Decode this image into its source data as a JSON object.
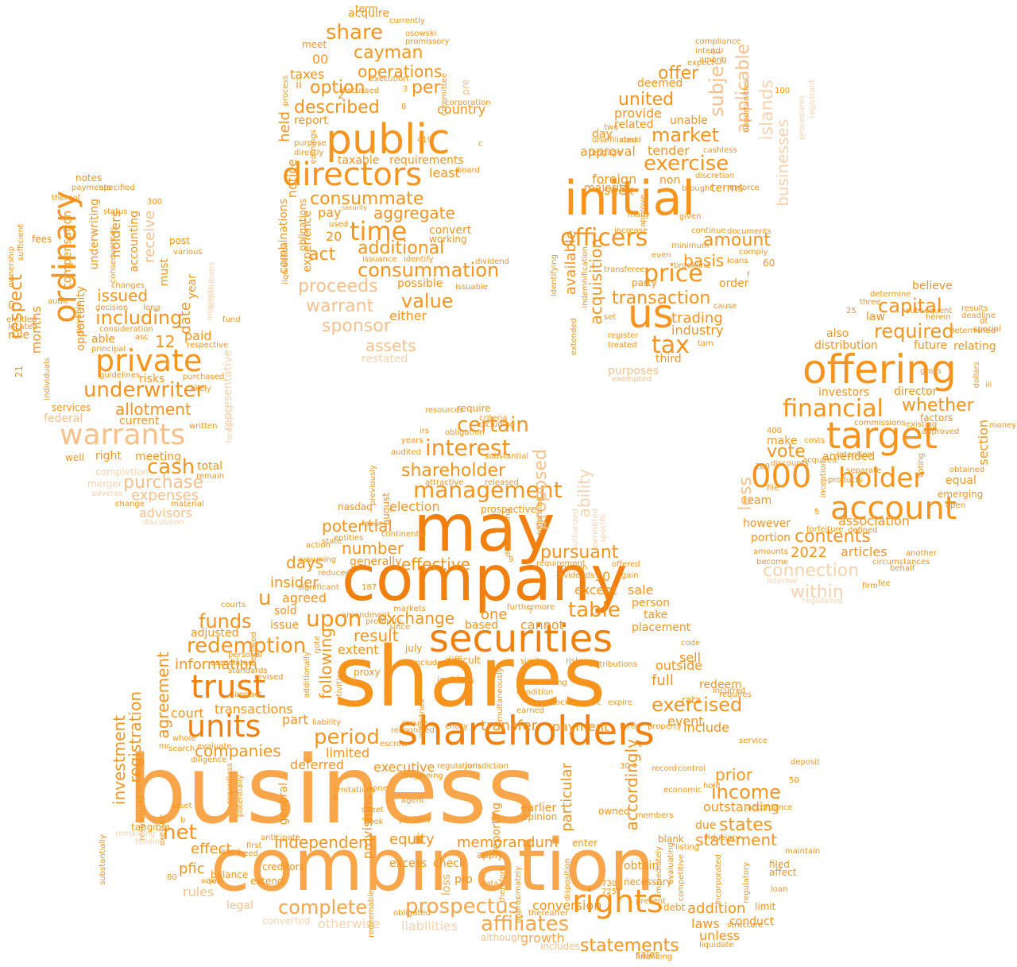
{
  "words": [
    "business",
    "shares",
    "combination",
    "company",
    "may",
    "securities",
    "shareholders",
    "initial",
    "public",
    "offering",
    "target",
    "directors",
    "units",
    "trust",
    "account",
    "rights",
    "warrants",
    "ordinary",
    "private",
    "000",
    "holder",
    "time",
    "affiliates",
    "prospectus",
    "statements",
    "consummation",
    "officers",
    "exercise",
    "us",
    "tax",
    "price",
    "underwriter",
    "redemption",
    "income",
    "cash",
    "period",
    "share",
    "financial",
    "capital",
    "exercised",
    "independent",
    "complete",
    "interest",
    "certain",
    "management",
    "upon",
    "table",
    "net",
    "value",
    "funds",
    "cayman",
    "operations",
    "described",
    "option",
    "consummate",
    "aggregate",
    "additional",
    "act",
    "proceeds",
    "warrant",
    "sponsor",
    "assets",
    "held",
    "per",
    "subject",
    "applicable",
    "islands",
    "market",
    "united",
    "offer",
    "transaction",
    "amount",
    "basis",
    "acquisition",
    "available",
    "trading",
    "industry",
    "third",
    "tender",
    "approval",
    "required",
    "whether",
    "vote",
    "contents",
    "connection",
    "within",
    "association",
    "2022",
    "articles",
    "amended",
    "months",
    "respect",
    "including",
    "issued",
    "allotment",
    "purchase",
    "expenses",
    "advisors",
    "receive",
    "date",
    "12",
    "paid",
    "pursuant",
    "proposed",
    "ability",
    "shareholder",
    "number",
    "potential",
    "election",
    "registration",
    "investment",
    "agreement",
    "information",
    "following",
    "companies",
    "states",
    "statement",
    "outstanding",
    "prior",
    "accordingly",
    "particular",
    "memorandum",
    "equity",
    "effect",
    "pfic",
    "rules",
    "legal",
    "conversion",
    "growth",
    "addition",
    "laws",
    "unless",
    "full",
    "outside",
    "sell",
    "redeem",
    "event",
    "include",
    "transfer",
    "payment",
    "limited",
    "executive",
    "provisions",
    "general",
    "deferred",
    "transactions",
    "court",
    "adjusted",
    "part",
    "agreed",
    "insider",
    "days",
    "effective",
    "generally",
    "exchange",
    "result",
    "extent",
    "one",
    "cannot",
    "based",
    "except",
    "sale",
    "person",
    "take",
    "placement",
    "10",
    "u",
    "notes",
    "fees",
    "compensation",
    "underwriting",
    "holders",
    "accounting",
    "opportunity",
    "federal",
    "services",
    "well",
    "right",
    "current",
    "risks",
    "meeting",
    "total",
    "completion",
    "merger",
    "representative",
    "year",
    "must",
    "post",
    "0",
    "rule",
    "21",
    "able",
    "team",
    "however",
    "portion",
    "make",
    "less",
    "section",
    "director",
    "investors",
    "also",
    "law",
    "distribution",
    "future",
    "relating",
    "believe",
    "obtain",
    "necessary",
    "extend",
    "balance",
    "qef",
    "actions",
    "creditors",
    "80",
    "need",
    "listed",
    "first",
    "anticipate",
    "check",
    "excess",
    "pro",
    "loss",
    "apply",
    "data",
    "reporting",
    "earlier",
    "opinion",
    "enter",
    "owned",
    "members",
    "debt",
    "present",
    "sales",
    "includes",
    "although",
    "thereafter",
    "obligated",
    "liabilities",
    "otherwise",
    "converted",
    "restated",
    "either",
    "possible",
    "issuable",
    "issuance",
    "working",
    "convert",
    "dividend",
    "identify",
    "requirements",
    "least",
    "pay",
    "20",
    "used",
    "taxable",
    "notice",
    "obligations",
    "experience",
    "combinations",
    "liquidation",
    "report",
    "purpose",
    "directly",
    "earnings",
    "security",
    "board",
    "country",
    "corporation",
    "pre",
    "committee",
    "execution",
    "discussed",
    "promissory",
    "osowski",
    "currently",
    "term",
    "acquire",
    "taxes",
    "meet",
    "ii",
    "process",
    "00",
    "2",
    "3",
    "8",
    "419",
    "c",
    "deemed",
    "provide",
    "related",
    "unable",
    "day",
    "foreign",
    "seek",
    "majority",
    "non",
    "terms",
    "two",
    "cloud",
    "engage",
    "unaffiliated",
    "cashless",
    "discretion",
    "enforce",
    "brought",
    "approve",
    "many",
    "increase",
    "continue",
    "given",
    "minimum",
    "documents",
    "comply",
    "brookline",
    "cause",
    "party",
    "order",
    "purposes",
    "exempted",
    "treated",
    "register",
    "set",
    "extended",
    "indemnification",
    "identifying",
    "transferees",
    "even",
    "tam",
    "loans",
    "f",
    "60",
    "100",
    "compliance",
    "intend",
    "among",
    "expect",
    "opportunities",
    "procedures",
    "businesses",
    "registrant",
    "special",
    "dt",
    "results",
    "deadline",
    "determined",
    "subsequent",
    "herein",
    "determine",
    "three",
    "25",
    "iii",
    "dollars",
    "gross",
    "money",
    "open",
    "emerging",
    "equal",
    "obtained",
    "factors",
    "existing",
    "commissions",
    "approved",
    "voting",
    "acquired",
    "costs",
    "file",
    "400",
    "180",
    "discounts",
    "5",
    "inception",
    "products",
    "separate",
    "intention",
    "forfeiture",
    "defined",
    "amounts",
    "become",
    "internal",
    "registered",
    "fee",
    "firm",
    "circumstances",
    "behalf",
    "another",
    "fiduciary",
    "hold",
    "record",
    "control",
    "deposit",
    "50",
    "accordance",
    "maintain",
    "filed",
    "affect",
    "loan",
    "limit",
    "conduct",
    "structure",
    "liquidate",
    "regulatory",
    "incorporated",
    "immediately",
    "evaluating",
    "competitive",
    "economic",
    "service",
    "requires",
    "incurred",
    "rata",
    "due",
    "blank",
    "listing",
    "financing",
    "730",
    "725",
    "redeemable",
    "disposition",
    "approximately",
    "therefore",
    "similar",
    "risk",
    "distributions",
    "expire",
    "consult",
    "forth",
    "property",
    "code",
    "substantial",
    "previously",
    "regarding",
    "permitted",
    "specific",
    "authorized",
    "released",
    "prospective",
    "august",
    "nasdaq",
    "entities",
    "continental",
    "favor",
    "state",
    "action",
    "assuming",
    "reduced",
    "significant",
    "courts",
    "declared",
    "personal",
    "impact",
    "associated",
    "standards",
    "revised",
    "whole",
    "evaluate",
    "diligence",
    "search",
    "reasonably",
    "mr",
    "regardless",
    "potentially",
    "asset",
    "b",
    "execute",
    "restrictions",
    "substantially",
    "tangible",
    "remaining",
    "holding",
    "issue",
    "sold",
    "note",
    "additionally",
    "activities",
    "insiders",
    "difficult",
    "included",
    "july",
    "proxy",
    "seeking",
    "condition",
    "earned",
    "stock",
    "simultaneously",
    "furthermore",
    "markets",
    "since",
    "promptly",
    "amendment",
    "187",
    "7",
    "9",
    "requirement",
    "position",
    "determining",
    "dividends",
    "offered",
    "gain",
    "resources",
    "criteria",
    "excluding",
    "obligation",
    "irs",
    "years",
    "audited",
    "attractive",
    "require",
    "regulations",
    "jurisdiction",
    "sheet",
    "book",
    "persons",
    "agent",
    "beginning",
    "escrow",
    "assure",
    "recognized",
    "entity",
    "limitations",
    "none",
    "6",
    "liability",
    "industries",
    "30",
    "4",
    "thereof",
    "payments",
    "specified",
    "status",
    "consequences",
    "sufficient",
    "ownership",
    "entitled",
    "located",
    "audit",
    "payable",
    "changes",
    "decision",
    "consideration",
    "principal",
    "asc",
    "long",
    "guidelines",
    "individuals",
    "purchased",
    "likely",
    "written",
    "remain",
    "change",
    "material",
    "discussion",
    "adverse",
    "foregoing",
    "fund",
    "interests",
    "acquisitions",
    "respective",
    "various",
    "300"
  ]
}
